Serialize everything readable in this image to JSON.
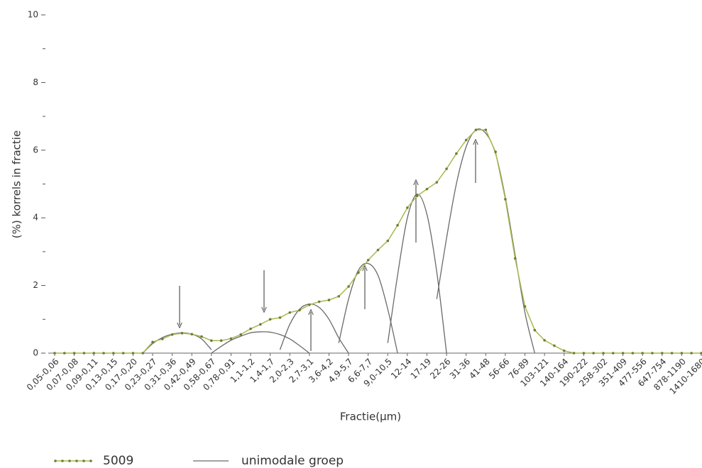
{
  "chart_data": {
    "type": "line",
    "ylabel": "(%) korrels in fractie",
    "xlabel": "Fractie(µm)",
    "categories": [
      "0,05-0,06",
      null,
      "0,07-0,08",
      null,
      "0,09-0,11",
      null,
      "0,13-0,15",
      null,
      "0,17-0,20",
      null,
      "0,23-0,27",
      null,
      "0,31-0,36",
      null,
      "0,42-0,49",
      null,
      "0,58-0,67",
      null,
      "0,78-0,91",
      null,
      "1,1-1,2",
      null,
      "1,4-1,7",
      null,
      "2,0-2,3",
      null,
      "2,7-3,1",
      null,
      "3,6-4,2",
      null,
      "4,9-5,7",
      null,
      "6,6-7,7",
      null,
      "9,0-10,5",
      null,
      "12-14",
      null,
      "17-19",
      null,
      "22-26",
      null,
      "31-36",
      null,
      "41-48",
      null,
      "56-66",
      null,
      "76-89",
      null,
      "103-121",
      null,
      "140-164",
      null,
      "190-222",
      null,
      "258-302",
      null,
      "351-409",
      null,
      "477-556",
      null,
      "647-754",
      null,
      "878-1190",
      null,
      "1410-1680"
    ],
    "ylim": [
      0,
      10
    ],
    "yticks": [
      0,
      2,
      4,
      6,
      8,
      10
    ],
    "yminor": [
      1,
      3,
      5,
      7,
      9
    ],
    "series": [
      {
        "name": "5009",
        "color": "#a9b84e",
        "marker_color": "#6e7d32",
        "values": [
          0,
          0,
          0,
          0,
          0,
          0,
          0,
          0,
          0,
          0,
          0.33,
          0.42,
          0.55,
          0.59,
          0.56,
          0.49,
          0.37,
          0.37,
          0.43,
          0.55,
          0.72,
          0.85,
          1.0,
          1.05,
          1.2,
          1.27,
          1.43,
          1.52,
          1.57,
          1.68,
          1.97,
          2.38,
          2.75,
          3.05,
          3.32,
          3.78,
          4.3,
          4.65,
          4.85,
          5.05,
          5.45,
          5.9,
          6.3,
          6.6,
          6.6,
          5.95,
          4.55,
          2.8,
          1.38,
          0.68,
          0.38,
          0.22,
          0.07,
          0,
          0,
          0,
          0,
          0,
          0,
          0,
          0,
          0,
          0,
          0,
          0,
          0,
          0
        ]
      }
    ],
    "groups": {
      "name": "unimodale groep",
      "color": "#6a6a6a",
      "curves": [
        {
          "values": [
            null,
            null,
            null,
            null,
            null,
            null,
            null,
            null,
            null,
            0,
            0.28,
            0.46,
            0.56,
            0.6,
            0.56,
            0.42,
            0.1,
            null,
            null,
            null,
            null,
            null,
            null,
            null,
            null,
            null,
            null,
            null,
            null,
            null,
            null,
            null,
            null,
            null,
            null,
            null,
            null,
            null,
            null,
            null,
            null,
            null,
            null,
            null,
            null,
            null,
            null,
            null,
            null,
            null,
            null,
            null,
            null,
            null,
            null,
            null,
            null,
            null,
            null,
            null,
            null,
            null,
            null,
            null,
            null,
            null,
            null
          ]
        },
        {
          "values": [
            null,
            null,
            null,
            null,
            null,
            null,
            null,
            null,
            null,
            null,
            null,
            null,
            null,
            null,
            null,
            null,
            0,
            0.2,
            0.38,
            0.5,
            0.6,
            0.63,
            0.62,
            0.55,
            0.42,
            0.22,
            0,
            null,
            null,
            null,
            null,
            null,
            null,
            null,
            null,
            null,
            null,
            null,
            null,
            null,
            null,
            null,
            null,
            null,
            null,
            null,
            null,
            null,
            null,
            null,
            null,
            null,
            null,
            null,
            null,
            null,
            null,
            null,
            null,
            null,
            null,
            null,
            null,
            null,
            null,
            null,
            null
          ]
        },
        {
          "values": [
            null,
            null,
            null,
            null,
            null,
            null,
            null,
            null,
            null,
            null,
            null,
            null,
            null,
            null,
            null,
            null,
            null,
            null,
            null,
            null,
            null,
            null,
            null,
            0.1,
            0.85,
            1.3,
            1.45,
            1.35,
            1.0,
            0.45,
            0,
            null,
            null,
            null,
            null,
            null,
            null,
            null,
            null,
            null,
            null,
            null,
            null,
            null,
            null,
            null,
            null,
            null,
            null,
            null,
            null,
            null,
            null,
            null,
            null,
            null,
            null,
            null,
            null,
            null,
            null,
            null,
            null,
            null,
            null,
            null,
            null
          ]
        },
        {
          "values": [
            null,
            null,
            null,
            null,
            null,
            null,
            null,
            null,
            null,
            null,
            null,
            null,
            null,
            null,
            null,
            null,
            null,
            null,
            null,
            null,
            null,
            null,
            null,
            null,
            null,
            null,
            null,
            null,
            null,
            0.3,
            1.6,
            2.45,
            2.65,
            2.3,
            1.3,
            0,
            null,
            null,
            null,
            null,
            null,
            null,
            null,
            null,
            null,
            null,
            null,
            null,
            null,
            null,
            null,
            null,
            null,
            null,
            null,
            null,
            null,
            null,
            null,
            null,
            null,
            null,
            null,
            null,
            null,
            null,
            null
          ]
        },
        {
          "values": [
            null,
            null,
            null,
            null,
            null,
            null,
            null,
            null,
            null,
            null,
            null,
            null,
            null,
            null,
            null,
            null,
            null,
            null,
            null,
            null,
            null,
            null,
            null,
            null,
            null,
            null,
            null,
            null,
            null,
            null,
            null,
            null,
            null,
            null,
            0.3,
            2.3,
            4.0,
            4.7,
            4.1,
            2.4,
            0,
            null,
            null,
            null,
            null,
            null,
            null,
            null,
            null,
            null,
            null,
            null,
            null,
            null,
            null,
            null,
            null,
            null,
            null,
            null,
            null,
            null,
            null,
            null,
            null,
            null,
            null
          ]
        },
        {
          "values": [
            null,
            null,
            null,
            null,
            null,
            null,
            null,
            null,
            null,
            null,
            null,
            null,
            null,
            null,
            null,
            null,
            null,
            null,
            null,
            null,
            null,
            null,
            null,
            null,
            null,
            null,
            null,
            null,
            null,
            null,
            null,
            null,
            null,
            null,
            null,
            null,
            null,
            null,
            null,
            1.6,
            3.4,
            5.0,
            6.1,
            6.6,
            6.5,
            5.9,
            4.6,
            2.9,
            1.2,
            0,
            null,
            null,
            null,
            null,
            null,
            null,
            null,
            null,
            null,
            null,
            null,
            null,
            null,
            null,
            null,
            null,
            null
          ]
        }
      ]
    }
  }
}
